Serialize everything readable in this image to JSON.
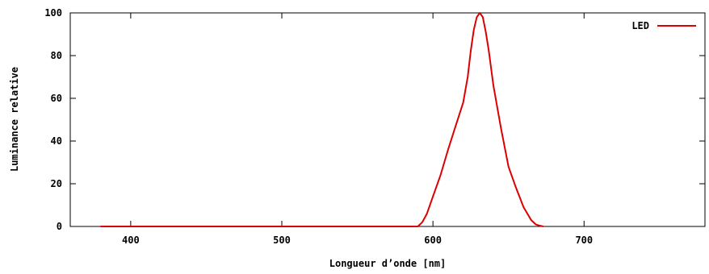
{
  "chart_data": {
    "type": "line",
    "title": "",
    "xlabel": "Longueur d’onde [nm]",
    "ylabel": "Luminance relative",
    "xlim": [
      360,
      780
    ],
    "ylim": [
      0,
      100
    ],
    "x_ticks": [
      400,
      500,
      600,
      700
    ],
    "y_ticks": [
      0,
      20,
      40,
      60,
      80,
      100
    ],
    "grid": false,
    "legend_position": "top-right",
    "series": [
      {
        "name": "LED",
        "color": "#dd0000",
        "x": [
          380,
          590,
          593,
          596,
          600,
          605,
          610,
          615,
          620,
          623,
          625,
          627,
          629,
          631,
          633,
          635,
          637,
          640,
          645,
          650,
          655,
          660,
          665,
          668,
          670,
          673
        ],
        "y": [
          0,
          0,
          2,
          6,
          14,
          24,
          36,
          47,
          58,
          70,
          82,
          92,
          98,
          100,
          98,
          91,
          82,
          66,
          46,
          28,
          18,
          9,
          3,
          1,
          0.5,
          0
        ]
      }
    ]
  }
}
